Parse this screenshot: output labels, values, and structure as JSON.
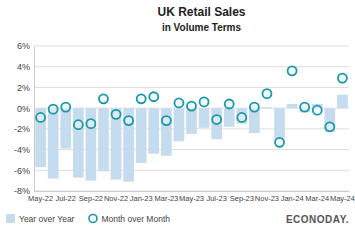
{
  "chart_data": {
    "type": "bar",
    "title": "UK Retail Sales",
    "subtitle": "in Volume Terms",
    "source": "ECONODAY.",
    "categories": [
      "May-22",
      null,
      "Jul-22",
      null,
      "Sep-22",
      null,
      "Nov-22",
      null,
      "Jan-23",
      null,
      "Mar-23",
      null,
      "May-23",
      null,
      "Jul-23",
      null,
      "Sep-23",
      null,
      "Nov-23",
      null,
      "Jan-24",
      null,
      "Mar-24",
      null,
      "May-24"
    ],
    "series": [
      {
        "name": "Year over Year",
        "type": "bar",
        "color": "#c5dcee",
        "values": [
          -5.7,
          -6.8,
          -3.9,
          -6.7,
          -7.0,
          -6.1,
          -6.9,
          -7.1,
          -5.3,
          -4.4,
          -4.6,
          -3.2,
          -2.5,
          -1.9,
          -3.0,
          -1.8,
          -1.5,
          -2.4,
          0.1,
          -3.0,
          0.4,
          -0.4,
          0.4,
          -2.3,
          1.3
        ]
      },
      {
        "name": "Month over Month",
        "type": "scatter",
        "marker": "circle",
        "color": "#1a98a8",
        "values": [
          -0.9,
          -0.1,
          0.1,
          -1.6,
          -1.5,
          0.9,
          -0.6,
          -1.2,
          0.9,
          1.1,
          -1.2,
          0.5,
          0.2,
          0.6,
          -1.1,
          0.4,
          -0.9,
          0.1,
          1.4,
          -3.3,
          3.6,
          0.1,
          -0.2,
          -1.8,
          2.9
        ]
      }
    ],
    "ylim": [
      -8,
      6
    ],
    "yticks": [
      {
        "value": -8,
        "label": "-8%"
      },
      {
        "value": -6,
        "label": "-6%"
      },
      {
        "value": -4,
        "label": "-4%"
      },
      {
        "value": -2,
        "label": "-2%"
      },
      {
        "value": 0,
        "label": "0%"
      },
      {
        "value": 2,
        "label": "2%"
      },
      {
        "value": 4,
        "label": "4%"
      },
      {
        "value": 6,
        "label": "6%"
      }
    ],
    "grid": true,
    "legend": "bottom"
  }
}
